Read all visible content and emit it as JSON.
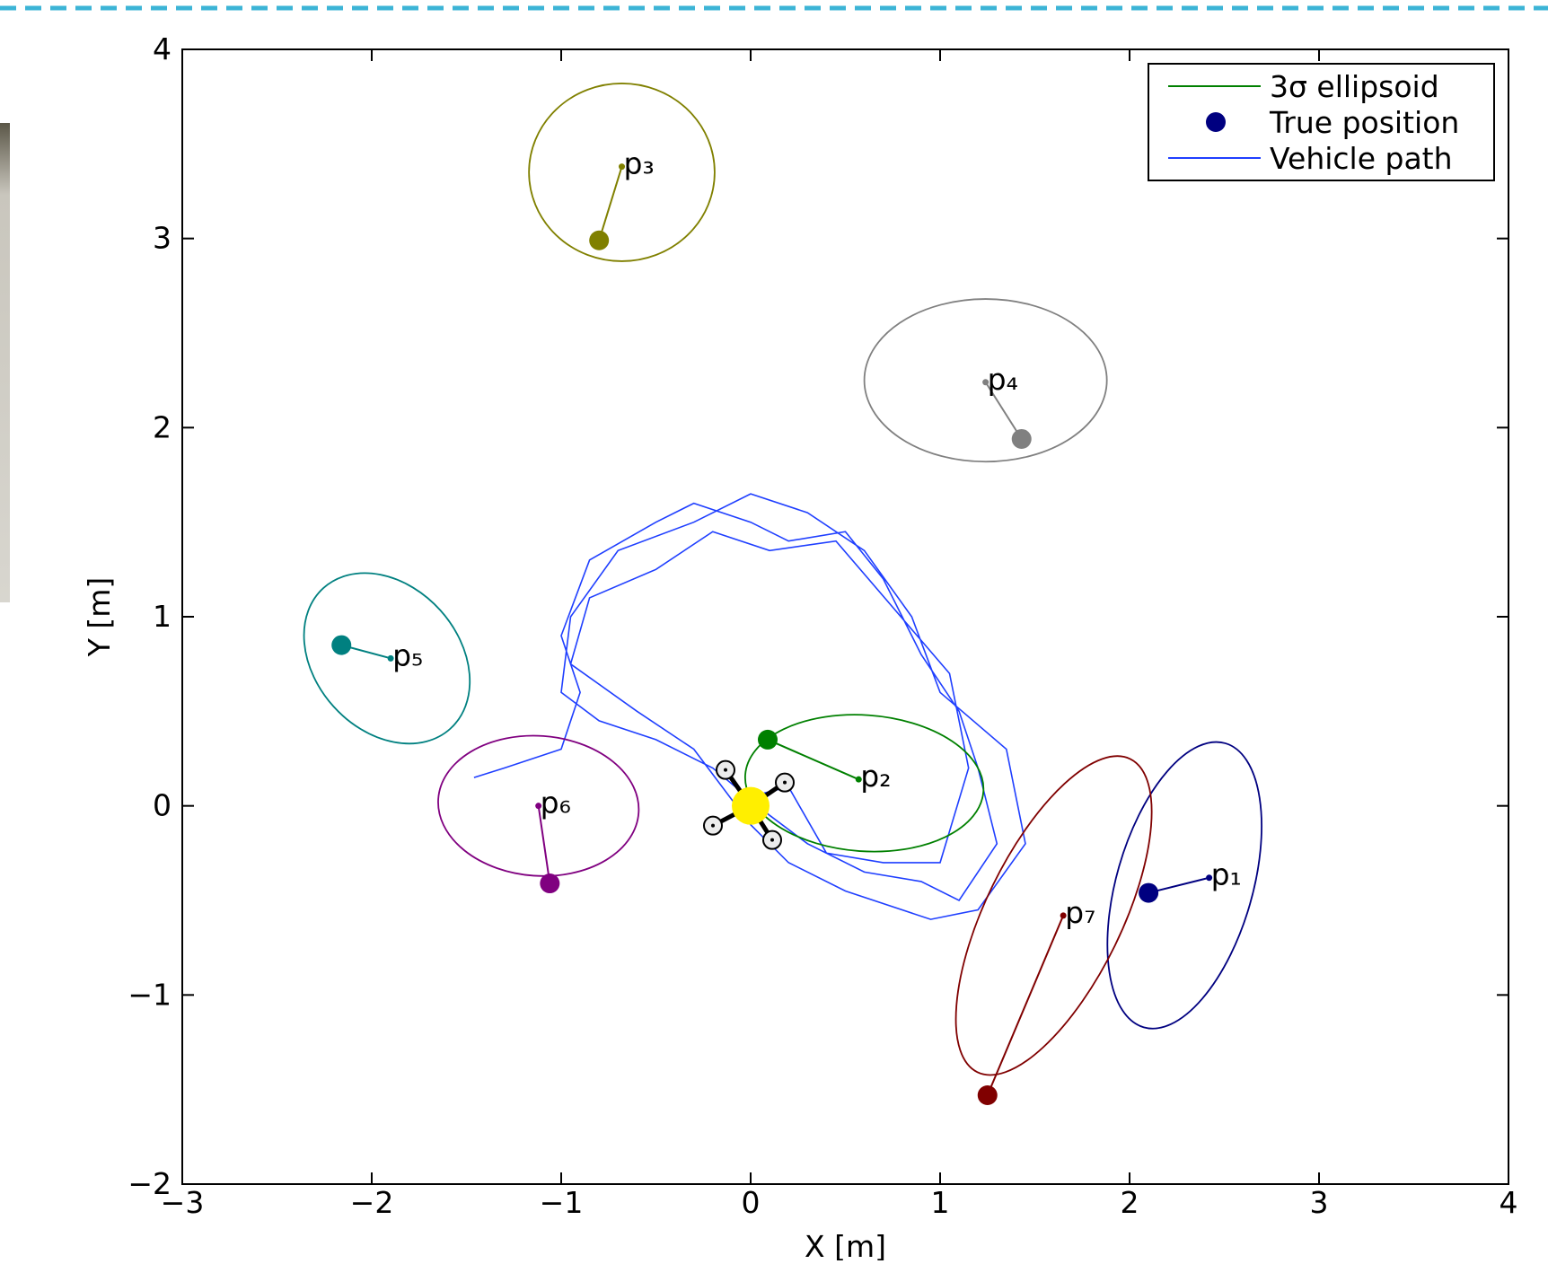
{
  "chart_data": {
    "type": "scatter",
    "xlabel": "X  [m]",
    "ylabel": "Y  [m]",
    "xlim": [
      -3,
      4
    ],
    "ylim": [
      -2,
      4
    ],
    "xticks": [
      {
        "value": -3,
        "label": "−3"
      },
      {
        "value": -2,
        "label": "−2"
      },
      {
        "value": -1,
        "label": "−1"
      },
      0,
      1,
      2,
      3,
      4
    ],
    "yticks": [
      {
        "value": -2,
        "label": "−2"
      },
      {
        "value": -1,
        "label": "−1"
      },
      0,
      1,
      2,
      3,
      4
    ],
    "legend": "upper right",
    "vehicle_position": [
      0,
      0
    ],
    "series": [
      {
        "name": "3σ ellipsoid",
        "color": "#008000"
      },
      {
        "name": "True position",
        "color": "#000080"
      },
      {
        "name": "Vehicle path",
        "color": "#1f3fff",
        "x": [
          -1.46,
          -1.3,
          -1.0,
          -0.9,
          -1.0,
          -0.85,
          -0.5,
          -0.3,
          0.0,
          0.2,
          0.5,
          0.7,
          0.9,
          1.1,
          1.2,
          1.3,
          1.1,
          0.9,
          0.6,
          0.3,
          0.1,
          -0.2,
          -0.5,
          -0.8,
          -1.0,
          -0.95,
          -0.7,
          -0.3,
          0.0,
          0.3,
          0.6,
          0.85,
          1.0,
          1.35,
          1.45,
          1.2,
          0.95,
          0.5,
          0.2,
          0.0,
          -0.3,
          -0.6,
          -0.95,
          -0.85,
          -0.5,
          -0.2,
          0.1,
          0.45,
          0.75,
          1.05,
          1.15,
          1.0,
          0.7,
          0.4,
          0.2,
          0.0
        ],
        "y": [
          0.15,
          0.2,
          0.3,
          0.6,
          0.9,
          1.3,
          1.5,
          1.6,
          1.5,
          1.4,
          1.45,
          1.2,
          0.8,
          0.5,
          0.2,
          -0.2,
          -0.5,
          -0.4,
          -0.35,
          -0.2,
          -0.05,
          0.2,
          0.35,
          0.45,
          0.6,
          1.0,
          1.35,
          1.5,
          1.65,
          1.55,
          1.35,
          1.0,
          0.6,
          0.3,
          -0.2,
          -0.55,
          -0.6,
          -0.45,
          -0.3,
          -0.1,
          0.3,
          0.5,
          0.75,
          1.1,
          1.25,
          1.45,
          1.35,
          1.4,
          1.05,
          0.7,
          0.2,
          -0.3,
          -0.3,
          -0.25,
          0.1,
          0.05
        ]
      }
    ],
    "landmarks": [
      {
        "label": "p₁",
        "color": "#000080",
        "x": 2.42,
        "y": -0.38,
        "true_x": 2.1,
        "true_y": -0.46,
        "ellipse": {
          "cx": 2.29,
          "cy": -0.42,
          "rx": 0.78,
          "ry": 0.36,
          "angle": 74
        }
      },
      {
        "label": "p₂",
        "color": "#008000",
        "x": 0.57,
        "y": 0.14,
        "true_x": 0.09,
        "true_y": 0.35,
        "ellipse": {
          "cx": 0.6,
          "cy": 0.12,
          "rx": 0.63,
          "ry": 0.36,
          "angle": -4
        }
      },
      {
        "label": "p₃",
        "color": "#808000",
        "x": -0.68,
        "y": 3.38,
        "true_x": -0.8,
        "true_y": 2.99,
        "ellipse": {
          "cx": -0.68,
          "cy": 3.35,
          "rx": 0.49,
          "ry": 0.47,
          "angle": 0
        }
      },
      {
        "label": "p₄",
        "color": "#808080",
        "x": 1.24,
        "y": 2.24,
        "true_x": 1.43,
        "true_y": 1.94,
        "ellipse": {
          "cx": 1.24,
          "cy": 2.25,
          "rx": 0.64,
          "ry": 0.43,
          "angle": 0
        }
      },
      {
        "label": "p₅",
        "color": "#008080",
        "x": -1.9,
        "y": 0.78,
        "true_x": -2.16,
        "true_y": 0.85,
        "ellipse": {
          "cx": -1.92,
          "cy": 0.78,
          "rx": 0.5,
          "ry": 0.38,
          "angle": -48
        }
      },
      {
        "label": "p₆",
        "color": "#800080",
        "x": -1.12,
        "y": 0.0,
        "true_x": -1.06,
        "true_y": -0.41,
        "ellipse": {
          "cx": -1.12,
          "cy": 0.0,
          "rx": 0.53,
          "ry": 0.37,
          "angle": -4
        }
      },
      {
        "label": "p₇",
        "color": "#800000",
        "x": 1.65,
        "y": -0.58,
        "true_x": 1.25,
        "true_y": -1.53,
        "ellipse": {
          "cx": 1.6,
          "cy": -0.58,
          "rx": 0.92,
          "ry": 0.36,
          "angle": 64
        }
      }
    ]
  }
}
